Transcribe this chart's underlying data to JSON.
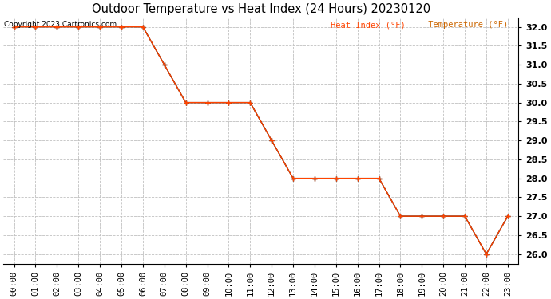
{
  "title": "Outdoor Temperature vs Heat Index (24 Hours) 20230120",
  "copyright_text": "Copyright 2023 Cartronics.com",
  "legend_heat_index": "Heat Index (°F)",
  "legend_temperature": "Temperature (°F)",
  "hours": [
    "00:00",
    "01:00",
    "02:00",
    "03:00",
    "04:00",
    "05:00",
    "06:00",
    "07:00",
    "08:00",
    "09:00",
    "10:00",
    "11:00",
    "12:00",
    "13:00",
    "14:00",
    "15:00",
    "16:00",
    "17:00",
    "18:00",
    "19:00",
    "20:00",
    "21:00",
    "22:00",
    "23:00"
  ],
  "temperature": [
    32.0,
    32.0,
    32.0,
    32.0,
    32.0,
    32.0,
    32.0,
    31.0,
    30.0,
    30.0,
    30.0,
    30.0,
    29.0,
    28.0,
    28.0,
    28.0,
    28.0,
    28.0,
    27.0,
    27.0,
    27.0,
    27.0,
    26.0,
    27.0
  ],
  "heat_index": [
    32.0,
    32.0,
    32.0,
    32.0,
    32.0,
    32.0,
    32.0,
    31.0,
    30.0,
    30.0,
    30.0,
    30.0,
    29.0,
    28.0,
    28.0,
    28.0,
    28.0,
    28.0,
    27.0,
    27.0,
    27.0,
    27.0,
    26.0,
    27.0
  ],
  "ylim_min": 25.75,
  "ylim_max": 32.25,
  "ytick_min": 26.0,
  "ytick_max": 32.0,
  "ytick_step": 0.5,
  "heat_index_color": "#ff4400",
  "temperature_color": "#000000",
  "legend_temp_color": "#cc6600",
  "background_color": "#ffffff",
  "grid_color": "#c0c0c0",
  "title_fontsize": 10.5,
  "legend_fontsize": 7.5,
  "copyright_fontsize": 6.5,
  "tick_fontsize": 7.5,
  "ytick_fontsize": 8
}
